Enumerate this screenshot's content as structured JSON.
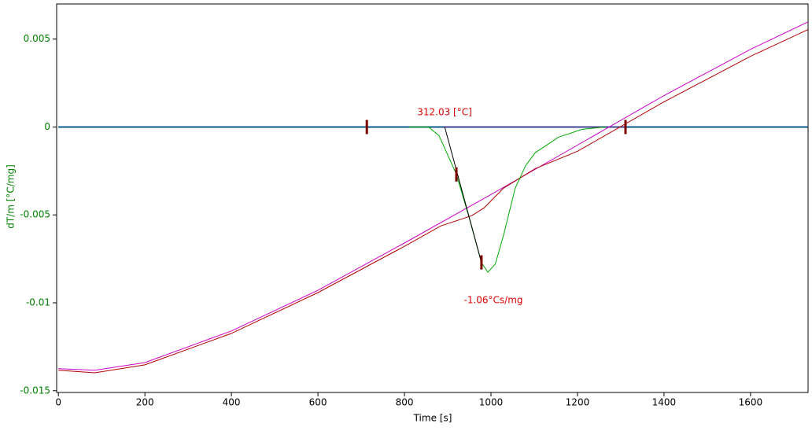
{
  "chart_data": {
    "type": "line",
    "xlabel": "Time [s]",
    "ylabel": "dT/m  [°C/mg]",
    "xlim": [
      -4,
      1733
    ],
    "ylim": [
      -0.0151,
      0.007
    ],
    "xticks": [
      0,
      200,
      400,
      600,
      800,
      1000,
      1200,
      1400,
      1600
    ],
    "yticks": [
      -0.015,
      -0.01,
      -0.005,
      0,
      0.005
    ],
    "grid": false,
    "series": [
      {
        "color": "#0a5a8a",
        "x": [
          0,
          1733
        ],
        "values": [
          0,
          0
        ]
      },
      {
        "color": "#7a2a9a",
        "x": [
          890,
          1310
        ],
        "values": [
          0,
          0
        ]
      },
      {
        "color": "#cc00cc",
        "x": [
          0,
          84,
          200,
          400,
          600,
          800,
          1000,
          1200,
          1400,
          1600,
          1733
        ],
        "values": [
          -0.01375,
          -0.01384,
          -0.0134,
          -0.0116,
          -0.00929,
          -0.0066,
          -0.00384,
          -0.00103,
          0.00179,
          0.00442,
          0.00598
        ]
      },
      {
        "color": "#b00000",
        "x": [
          0,
          84,
          200,
          400,
          600,
          800,
          884,
          956,
          984,
          1029,
          1102,
          1200,
          1400,
          1600,
          1733
        ],
        "values": [
          -0.01384,
          -0.01398,
          -0.01353,
          -0.01174,
          -0.00942,
          -0.00679,
          -0.00563,
          -0.00504,
          -0.0046,
          -0.00348,
          -0.00237,
          -0.00138,
          0.00143,
          0.00402,
          0.00554
        ]
      },
      {
        "color": "#00aa00",
        "x": [
          811,
          856,
          880,
          920,
          950,
          978,
          993,
          1010,
          1029,
          1056,
          1080,
          1102,
          1156,
          1211,
          1265
        ],
        "values": [
          0,
          0,
          -0.0005,
          -0.00268,
          -0.0052,
          -0.00772,
          -0.00826,
          -0.0078,
          -0.00616,
          -0.00348,
          -0.0022,
          -0.00147,
          -0.00058,
          -0.00013,
          0
        ]
      },
      {
        "color": "#000000",
        "x": [
          893,
          978
        ],
        "values": [
          0,
          -0.0077
        ]
      }
    ],
    "markers": {
      "color": "#7a0000",
      "x": [
        713,
        920,
        978,
        1311
      ],
      "values": [
        0,
        -0.0027,
        -0.0077,
        0
      ]
    },
    "annotations": [
      "312.03 [°C]",
      "-1.06°Cs/mg"
    ]
  }
}
